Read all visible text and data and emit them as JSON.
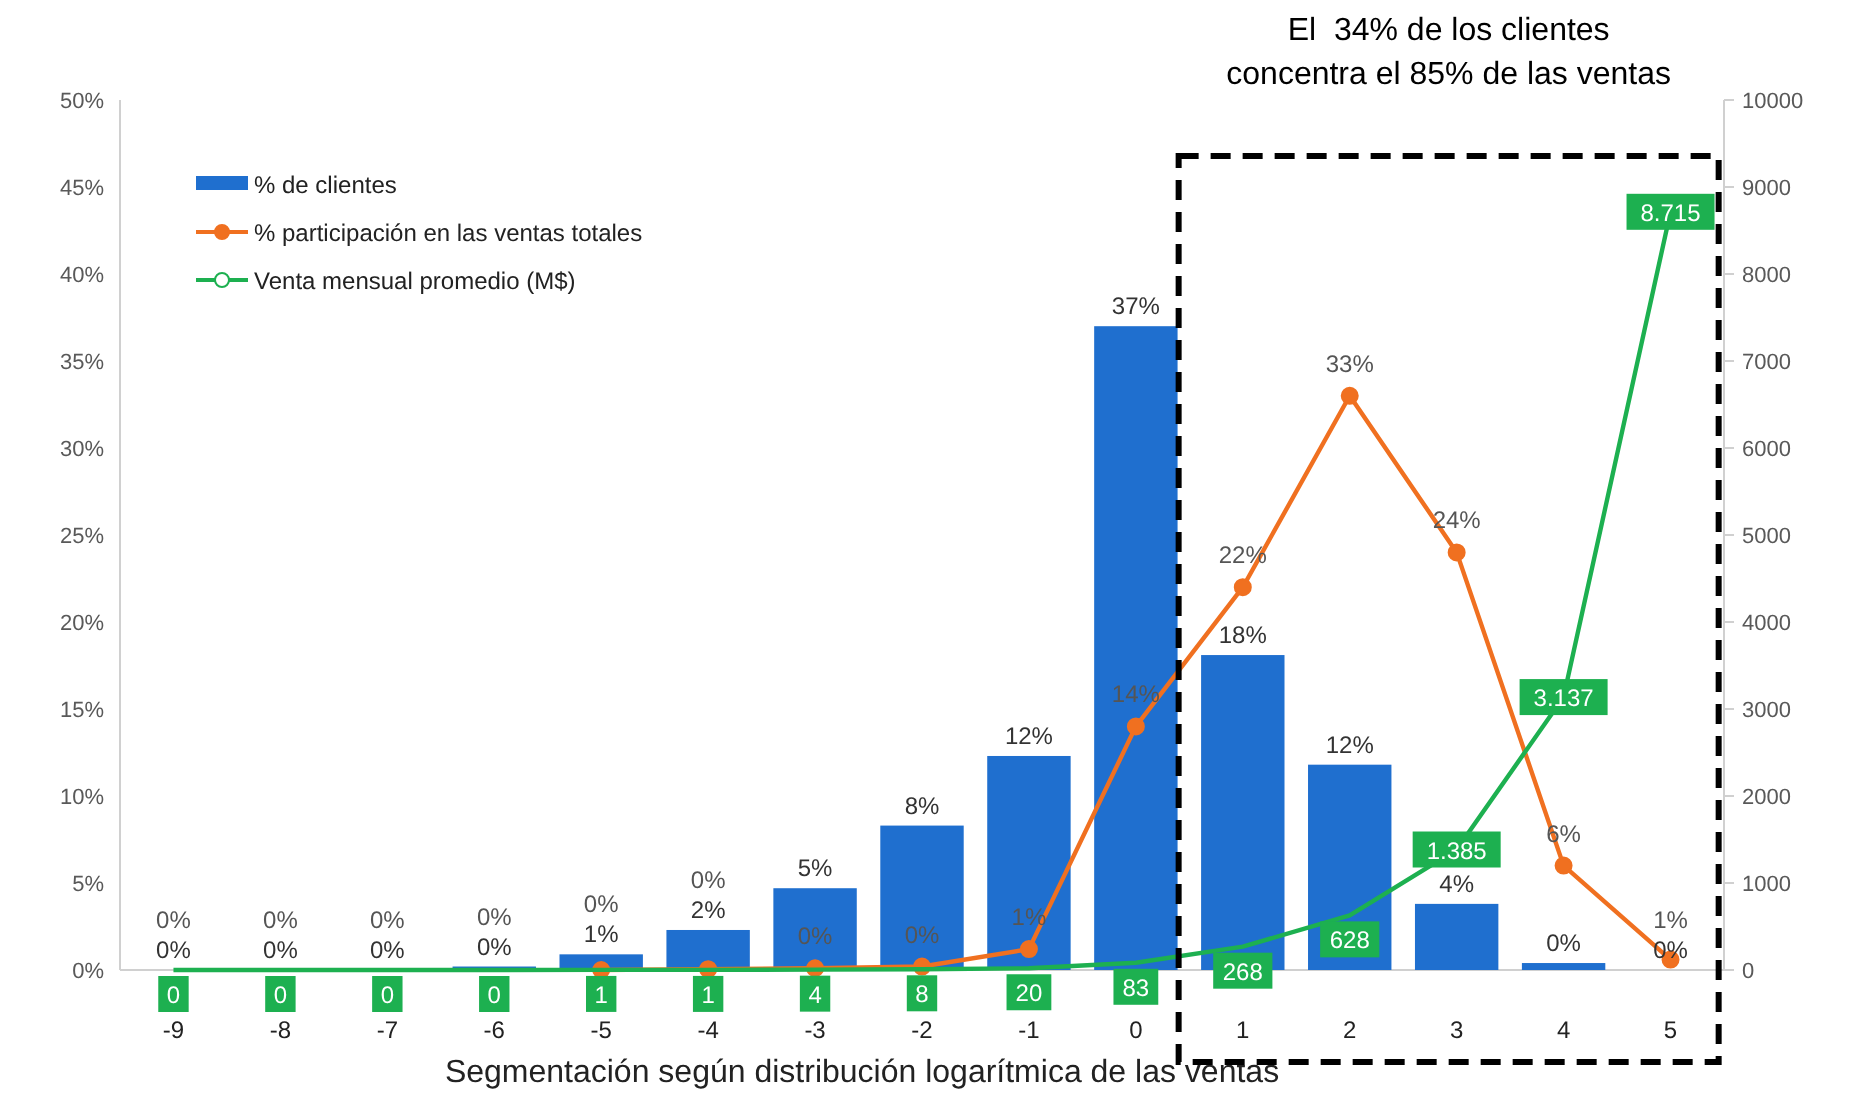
{
  "chart_data": {
    "type": "bar",
    "xlabel": "Segmentación según distribución logarítmica de las ventas",
    "categories": [
      "-9",
      "-8",
      "-7",
      "-6",
      "-5",
      "-4",
      "-3",
      "-2",
      "-1",
      "0",
      "1",
      "2",
      "3",
      "4",
      "5"
    ],
    "series": [
      {
        "name": "% de clientes",
        "color": "#1f6fcf",
        "values": [
          0,
          0,
          0,
          0.2,
          0.9,
          2.3,
          4.7,
          8.3,
          12.3,
          37,
          18.1,
          11.8,
          3.8,
          0.4,
          0
        ],
        "value_labels": [
          "0%",
          "0%",
          "0%",
          "0%",
          "1%",
          "2%",
          "5%",
          "8%",
          "12%",
          "37%",
          "18%",
          "12%",
          "4%",
          "0%",
          "0%"
        ]
      },
      {
        "name": "% participación en las ventas totales",
        "type": "line",
        "marker": "circle",
        "color": "#f07020",
        "values": [
          null,
          null,
          null,
          null,
          0,
          0.05,
          0.1,
          0.2,
          1.2,
          14,
          22,
          33,
          24,
          6,
          0.6
        ],
        "value_labels": [
          "0%",
          "0%",
          "0%",
          "0%",
          "0%",
          "0%",
          "0%",
          "0%",
          "1%",
          "14%",
          "22%",
          "33%",
          "24%",
          "6%",
          "1%"
        ]
      },
      {
        "name": "Venta mensual promedio (M$)",
        "type": "line",
        "axis": "y2",
        "color": "#1db050",
        "values": [
          0,
          0,
          0,
          0,
          1,
          1,
          4,
          8,
          20,
          83,
          268,
          628,
          1385,
          3137,
          8715
        ],
        "value_labels": [
          "0",
          "0",
          "0",
          "0",
          "1",
          "1",
          "4",
          "8",
          "20",
          "83",
          "268",
          "628",
          "1.385",
          "3.137",
          "8.715"
        ]
      }
    ],
    "ylim": [
      0,
      50
    ],
    "yticks": [
      {
        "value": 0,
        "label": "0%"
      },
      {
        "value": 5,
        "label": "5%"
      },
      {
        "value": 10,
        "label": "10%"
      },
      {
        "value": 15,
        "label": "15%"
      },
      {
        "value": 20,
        "label": "20%"
      },
      {
        "value": 25,
        "label": "25%"
      },
      {
        "value": 30,
        "label": "30%"
      },
      {
        "value": 35,
        "label": "35%"
      },
      {
        "value": 40,
        "label": "40%"
      },
      {
        "value": 45,
        "label": "45%"
      },
      {
        "value": 50,
        "label": "50%"
      }
    ],
    "y2lim": [
      0,
      10000
    ],
    "y2ticks": [
      0,
      1000,
      2000,
      3000,
      4000,
      5000,
      6000,
      7000,
      8000,
      9000,
      10000
    ],
    "annotations": [
      "El  34% de los clientes concentra el 85% de las ventas"
    ],
    "legend": "top left",
    "grid": false
  }
}
